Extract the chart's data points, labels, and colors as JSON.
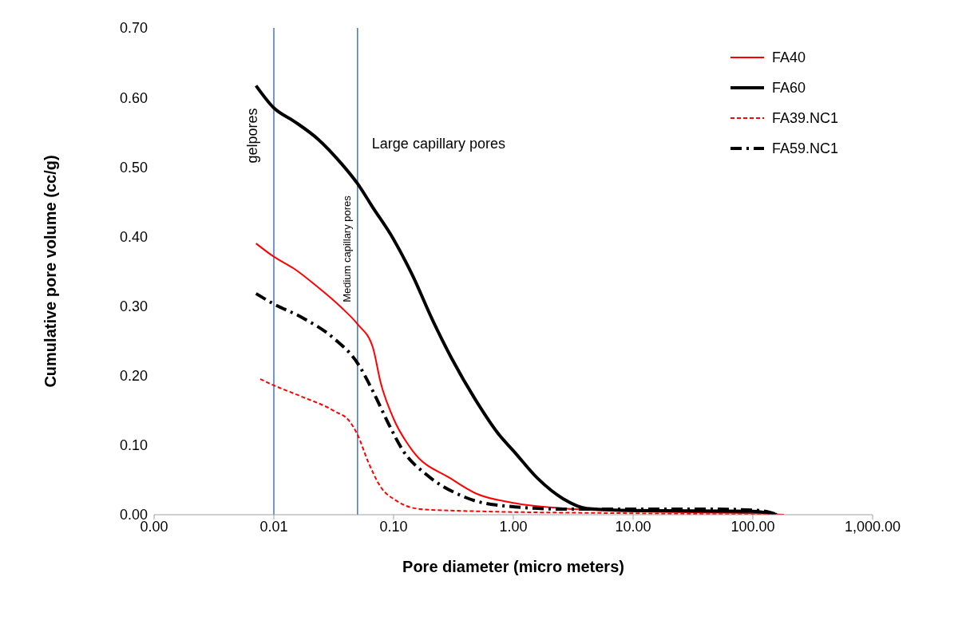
{
  "chart_data": {
    "type": "line",
    "xlabel": "Pore diameter (micro meters)",
    "ylabel": "Cumulative pore volume (cc/g)",
    "log": "x",
    "xlim": [
      0.001,
      1000
    ],
    "xticks": [
      {
        "value": 0.001,
        "label": "0.00"
      },
      {
        "value": 0.01,
        "label": "0.01"
      },
      {
        "value": 0.1,
        "label": "0.10"
      },
      {
        "value": 1,
        "label": "1.00"
      },
      {
        "value": 10,
        "label": "10.00"
      },
      {
        "value": 100,
        "label": "100.00"
      },
      {
        "value": 1000,
        "label": "1,000.00"
      }
    ],
    "ylim": [
      0,
      0.7
    ],
    "yticks": [
      {
        "value": 0,
        "label": "0.00"
      },
      {
        "value": 0.1,
        "label": "0.10"
      },
      {
        "value": 0.2,
        "label": "0.20"
      },
      {
        "value": 0.3,
        "label": "0.30"
      },
      {
        "value": 0.4,
        "label": "0.40"
      },
      {
        "value": 0.5,
        "label": "0.50"
      },
      {
        "value": 0.6,
        "label": "0.60"
      },
      {
        "value": 0.7,
        "label": "0.70"
      }
    ],
    "legend": "top right",
    "marker": "none",
    "ref_lines": [
      {
        "axis": "x",
        "value": 0.01,
        "color": "#4472c4"
      },
      {
        "axis": "x",
        "value": 0.05,
        "color": "#4472c4"
      }
    ],
    "annotations": [
      "gelpores",
      "Medium capillary pores",
      "Large capillary pores"
    ],
    "series": [
      {
        "name": "FA40",
        "color": "#ff0000",
        "line_style": "solid",
        "x": [
          0.0071,
          0.01,
          0.0147,
          0.0234,
          0.0366,
          0.05,
          0.067,
          0.078,
          0.1,
          0.144,
          0.3,
          0.48,
          1,
          2.7,
          10,
          100,
          182
        ],
        "values": [
          0.39,
          0.371,
          0.354,
          0.327,
          0.298,
          0.274,
          0.241,
          0.19,
          0.138,
          0.092,
          0.052,
          0.031,
          0.017,
          0.009,
          0.005,
          0.002,
          0
        ]
      },
      {
        "name": "FA60",
        "color": "#000000",
        "line_style": "solid",
        "x": [
          0.0071,
          0.01,
          0.0147,
          0.0234,
          0.0366,
          0.05,
          0.067,
          0.1,
          0.144,
          0.21,
          0.307,
          0.48,
          0.76,
          1,
          1.6,
          2.6,
          4.1,
          10,
          100,
          159
        ],
        "values": [
          0.617,
          0.585,
          0.566,
          0.54,
          0.505,
          0.476,
          0.442,
          0.396,
          0.344,
          0.281,
          0.224,
          0.166,
          0.115,
          0.092,
          0.052,
          0.023,
          0.009,
          0.006,
          0.005,
          0
        ]
      },
      {
        "name": "FA39.NC1",
        "color": "#ff0000",
        "line_style": "dashed",
        "x": [
          0.0077,
          0.01,
          0.017,
          0.032,
          0.043,
          0.05,
          0.061,
          0.078,
          0.106,
          0.168,
          0.48,
          10,
          182
        ],
        "values": [
          0.195,
          0.186,
          0.17,
          0.149,
          0.134,
          0.115,
          0.077,
          0.04,
          0.02,
          0.008,
          0.005,
          0.002,
          0
        ]
      },
      {
        "name": "FA59.NC1",
        "color": "#000000",
        "line_style": "dashdot",
        "x": [
          0.0071,
          0.01,
          0.017,
          0.032,
          0.05,
          0.067,
          0.09,
          0.12,
          0.19,
          0.35,
          0.65,
          2.7,
          10,
          48,
          113,
          160
        ],
        "values": [
          0.318,
          0.303,
          0.284,
          0.253,
          0.218,
          0.178,
          0.132,
          0.092,
          0.057,
          0.029,
          0.015,
          0.008,
          0.008,
          0.008,
          0.006,
          0
        ]
      }
    ]
  }
}
